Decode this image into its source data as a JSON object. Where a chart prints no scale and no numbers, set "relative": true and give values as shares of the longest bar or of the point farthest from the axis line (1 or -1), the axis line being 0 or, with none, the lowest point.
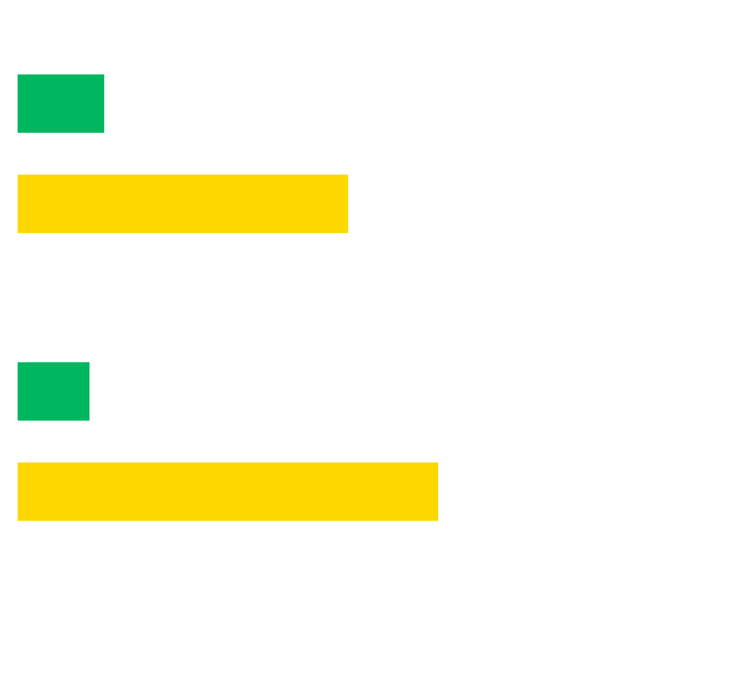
{
  "chart_data": {
    "type": "bar",
    "orientation": "horizontal",
    "relative": true,
    "categories": [
      null,
      null
    ],
    "series": [
      {
        "color": "#00b65e",
        "values": [
          0.206,
          0.171
        ]
      },
      {
        "color": "#fed700",
        "values": [
          0.786,
          1
        ]
      }
    ],
    "legend": false,
    "tick_labels": false
  }
}
